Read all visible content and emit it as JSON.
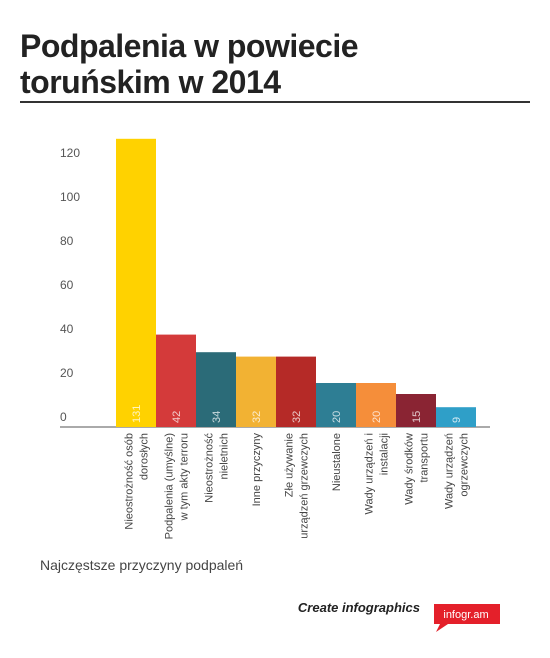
{
  "chart_data": {
    "type": "bar",
    "title": "Podpalenia w powiecie toruńskim w 2014",
    "categories": [
      [
        "Nieostrożność osób",
        "dorosłych"
      ],
      [
        "Podpalenia (umyślne)",
        "w tym akty terroru"
      ],
      [
        "Nieostrożność",
        "nieletnich"
      ],
      [
        "Inne przyczyny"
      ],
      [
        "Złe używanie",
        "urządzeń grzewczych"
      ],
      [
        "Nieustalone"
      ],
      [
        "Wady urządzeń i",
        "instalacji"
      ],
      [
        "Wady środków",
        "transportu"
      ],
      [
        "Wady urządzeń",
        "ogrzewczych"
      ]
    ],
    "values": [
      131,
      42,
      34,
      32,
      32,
      20,
      20,
      15,
      9
    ],
    "colors": [
      "#ffd200",
      "#d43a3a",
      "#2b6b78",
      "#f2b233",
      "#b52a27",
      "#2e7e94",
      "#f58e3a",
      "#8a2433",
      "#2f9fc8"
    ],
    "ylim": [
      0,
      140
    ],
    "yticks": [
      0,
      20,
      40,
      60,
      80,
      100,
      120
    ],
    "caption": "Najczęstsze przyczyny podpaleń",
    "footer": {
      "text": "Create infographics",
      "brand": "infogr.am"
    }
  }
}
